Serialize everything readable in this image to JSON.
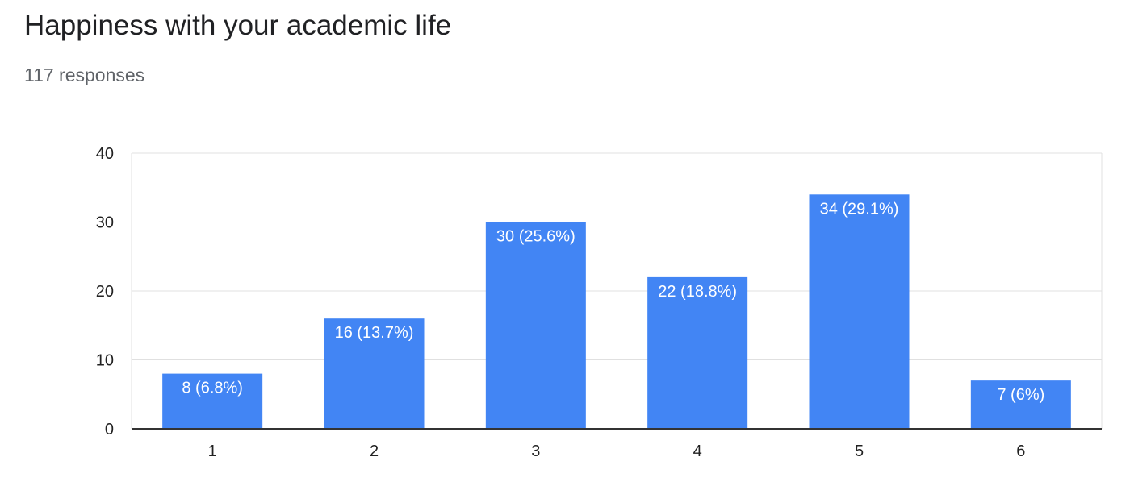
{
  "header": {
    "title": "Happiness with your academic life",
    "responses": "117 responses"
  },
  "colors": {
    "bar": "#4285f4",
    "bar_label": "#ffffff",
    "grid": "#e0e0e0",
    "axis": "#333333",
    "tick_text": "#222222"
  },
  "chart_data": {
    "type": "bar",
    "categories": [
      "1",
      "2",
      "3",
      "4",
      "5",
      "6"
    ],
    "values": [
      8,
      16,
      30,
      22,
      34,
      7
    ],
    "data_labels": [
      "8 (6.8%)",
      "16 (13.7%)",
      "30 (25.6%)",
      "22 (18.8%)",
      "34 (29.1%)",
      "7 (6%)"
    ],
    "title": "Happiness with your academic life",
    "subtitle": "117 responses",
    "xlabel": "",
    "ylabel": "",
    "ylim": [
      0,
      40
    ],
    "yticks": [
      0,
      10,
      20,
      30,
      40
    ],
    "grid": true,
    "legend": "none"
  }
}
